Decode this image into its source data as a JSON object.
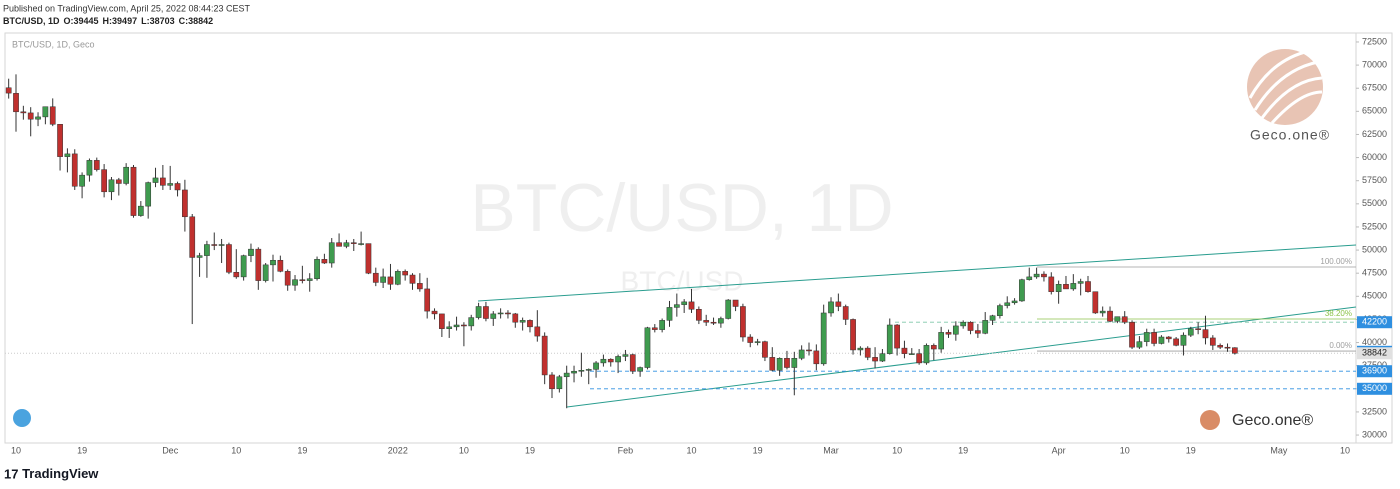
{
  "header": {
    "published": "Published on TradingView.com, April 25, 2022 08:44:23 CEST",
    "symbol": "BTC/USD, 1D",
    "ohlc": [
      {
        "label": "O:",
        "value": 39445
      },
      {
        "label": "H:",
        "value": 39497
      },
      {
        "label": "L:",
        "value": 38703
      },
      {
        "label": "C:",
        "value": 38842
      }
    ]
  },
  "chart_data": {
    "type": "candlestick",
    "legend": "BTC/USD, 1D, Geco",
    "watermark": "BTC/USD, 1D",
    "watermark_small": "BTC/USD",
    "up_color": "#3f9b4f",
    "down_color": "#c0302e",
    "categories": [
      null,
      "10",
      null,
      null,
      null,
      null,
      null,
      null,
      null,
      null,
      "19",
      null,
      null,
      null,
      null,
      null,
      null,
      null,
      null,
      null,
      null,
      null,
      "Dec",
      null,
      null,
      null,
      null,
      null,
      null,
      null,
      null,
      "10",
      null,
      null,
      null,
      null,
      null,
      null,
      null,
      null,
      "19",
      null,
      null,
      null,
      null,
      null,
      null,
      null,
      null,
      null,
      null,
      null,
      null,
      "2022",
      null,
      null,
      null,
      null,
      null,
      null,
      null,
      null,
      "10",
      null,
      null,
      null,
      null,
      null,
      null,
      null,
      null,
      "19",
      null,
      null,
      null,
      null,
      null,
      null,
      null,
      null,
      null,
      null,
      null,
      null,
      "Feb",
      null,
      null,
      null,
      null,
      null,
      null,
      null,
      null,
      "10",
      null,
      null,
      null,
      null,
      null,
      null,
      null,
      null,
      "19",
      null,
      null,
      null,
      null,
      null,
      null,
      null,
      null,
      null,
      "Mar",
      null,
      null,
      null,
      null,
      null,
      null,
      null,
      null,
      "10",
      null,
      null,
      null,
      null,
      null,
      null,
      null,
      null,
      "19",
      null,
      null,
      null,
      null,
      null,
      null,
      null,
      null,
      null,
      null,
      null,
      null,
      "Apr",
      null,
      null,
      null,
      null,
      null,
      null,
      null,
      null,
      "10",
      null,
      null,
      null,
      null,
      null,
      null,
      null,
      null,
      "19",
      null,
      null,
      null,
      null,
      null,
      null,
      null,
      null,
      null,
      null,
      null,
      "May",
      null,
      null,
      null,
      null,
      null,
      null,
      null,
      null,
      "10",
      null
    ],
    "open": [
      67550,
      66950,
      64950,
      64830,
      64150,
      64400,
      65500,
      63600,
      60100,
      60400,
      56900,
      58100,
      59700,
      58700,
      56300,
      57600,
      57200,
      58960,
      53730,
      54750,
      57300,
      57800,
      57000,
      57200,
      56500,
      53600,
      49200,
      49400,
      50600,
      50500,
      50600,
      47600,
      47100,
      49400,
      50100,
      46700,
      48400,
      48900,
      47700,
      46200,
      46800,
      46700,
      46900,
      49000,
      48600,
      50800,
      50400,
      50800,
      50700,
      50700,
      47500,
      46500,
      47100,
      46300,
      47700,
      47300,
      46400,
      45800,
      43400,
      43100,
      41500,
      41700,
      41900,
      41800,
      42700,
      43900,
      42600,
      43100,
      43200,
      43100,
      42200,
      42400,
      41700,
      40700,
      36500,
      35000,
      36300,
      36700,
      36900,
      37000,
      37100,
      37800,
      38200,
      37900,
      38500,
      38700,
      36900,
      37300,
      41600,
      41400,
      42400,
      43800,
      44100,
      44400,
      43600,
      42400,
      42200,
      42100,
      42600,
      44600,
      43900,
      40600,
      40000,
      40100,
      38400,
      37000,
      38300,
      37300,
      38300,
      39200,
      39100,
      37700,
      43200,
      44400,
      43900,
      42500,
      39200,
      39400,
      38400,
      38000,
      38800,
      41900,
      39400,
      38800,
      38800,
      37800,
      39700,
      39300,
      41100,
      40900,
      41800,
      42200,
      41300,
      41000,
      42400,
      42900,
      44000,
      44300,
      44500,
      46800,
      47100,
      47400,
      47100,
      45500,
      46300,
      45800,
      46400,
      46600,
      45500,
      43200,
      43400,
      42300,
      42800,
      42200,
      39500,
      40100,
      41100,
      39900,
      40600,
      40400,
      39700,
      40800,
      41500,
      41400,
      40500,
      39700,
      39500,
      39445,
      null,
      null,
      null,
      null,
      null,
      null,
      null,
      null,
      null,
      null,
      null,
      null,
      null,
      null,
      null,
      null
    ],
    "high": [
      68530,
      69000,
      65600,
      65450,
      64900,
      65500,
      66400,
      63600,
      61000,
      60900,
      58400,
      59900,
      60000,
      59300,
      57900,
      57800,
      59400,
      59200,
      55300,
      57400,
      58900,
      59200,
      59100,
      57400,
      57600,
      53900,
      49700,
      51000,
      51900,
      51200,
      50800,
      50100,
      49500,
      50700,
      50300,
      48600,
      49500,
      49400,
      47900,
      47300,
      48300,
      47500,
      49300,
      49600,
      51300,
      51800,
      51100,
      51200,
      52000,
      50700,
      48100,
      48000,
      48500,
      47900,
      47900,
      47500,
      47500,
      47000,
      43700,
      43100,
      42300,
      42800,
      42200,
      43000,
      44300,
      44400,
      43400,
      43700,
      43500,
      43200,
      42700,
      42500,
      43500,
      41100,
      36800,
      36500,
      37500,
      37500,
      38900,
      37200,
      38000,
      38700,
      38300,
      38700,
      39200,
      38800,
      37400,
      41700,
      42000,
      42600,
      44500,
      45300,
      44700,
      45800,
      43900,
      43000,
      42700,
      42800,
      44700,
      44600,
      44200,
      40900,
      40400,
      40200,
      39500,
      38400,
      39100,
      39000,
      39700,
      40000,
      39800,
      44100,
      44900,
      45300,
      44100,
      42600,
      39600,
      39600,
      39500,
      39300,
      42600,
      42000,
      40200,
      39400,
      39300,
      39900,
      39900,
      41700,
      41400,
      42300,
      42400,
      42300,
      42000,
      43300,
      43000,
      44200,
      45000,
      44800,
      46900,
      48100,
      48100,
      47700,
      47600,
      46700,
      47200,
      47400,
      46900,
      47200,
      45500,
      43900,
      43900,
      42800,
      43400,
      42400,
      40700,
      41500,
      41500,
      40800,
      40700,
      40600,
      41100,
      41700,
      42200,
      42900,
      40800,
      39900,
      39900,
      39497,
      null,
      null,
      null,
      null,
      null,
      null,
      null,
      null,
      null,
      null,
      null,
      null,
      null,
      null,
      null,
      null
    ],
    "low": [
      66380,
      62800,
      64100,
      62300,
      63400,
      63600,
      63400,
      58600,
      58400,
      56500,
      55600,
      57400,
      58500,
      55700,
      55400,
      55900,
      57000,
      53500,
      53600,
      53400,
      56800,
      56500,
      56500,
      55800,
      52000,
      42000,
      47100,
      47000,
      50000,
      48600,
      47400,
      46900,
      46700,
      48700,
      45700,
      46500,
      46600,
      47600,
      45600,
      45600,
      46400,
      45500,
      46700,
      48500,
      48100,
      50400,
      50200,
      49900,
      50500,
      47400,
      46100,
      45900,
      45700,
      46200,
      46700,
      45700,
      45500,
      42600,
      42500,
      40600,
      40500,
      41300,
      39600,
      41300,
      42500,
      42300,
      41800,
      42600,
      42600,
      41600,
      41300,
      41100,
      40100,
      35500,
      34000,
      34600,
      32900,
      35700,
      36300,
      35500,
      36200,
      37400,
      37400,
      36700,
      38000,
      36600,
      36300,
      37100,
      41100,
      41100,
      41700,
      42800,
      43200,
      43200,
      42000,
      41800,
      41900,
      41600,
      42500,
      43400,
      40100,
      39500,
      39700,
      38000,
      36900,
      36400,
      37100,
      34300,
      38100,
      38600,
      37000,
      37500,
      42800,
      43400,
      41900,
      38700,
      38600,
      38100,
      37200,
      37900,
      38700,
      38600,
      38300,
      38700,
      37600,
      37600,
      38100,
      38900,
      40500,
      40200,
      41500,
      40900,
      40500,
      40900,
      41900,
      42600,
      43700,
      44100,
      44400,
      46700,
      46900,
      46600,
      45200,
      44200,
      45800,
      45600,
      45100,
      45400,
      43100,
      42800,
      42200,
      42100,
      42000,
      39300,
      39300,
      39600,
      39600,
      39800,
      40000,
      39600,
      38600,
      40600,
      40900,
      39800,
      39200,
      39300,
      39000,
      38703,
      null,
      null,
      null,
      null,
      null,
      null,
      null,
      null,
      null,
      null,
      null,
      null,
      null,
      null,
      null,
      null
    ],
    "close": [
      66970,
      64950,
      64830,
      64150,
      64400,
      65500,
      63600,
      60100,
      60400,
      56900,
      58100,
      59700,
      58700,
      56300,
      57600,
      57200,
      58960,
      53730,
      54750,
      57300,
      57800,
      57000,
      57200,
      56500,
      53600,
      49200,
      49400,
      50600,
      50500,
      50600,
      47600,
      47100,
      49400,
      50100,
      46700,
      48400,
      48900,
      47700,
      46200,
      46800,
      46700,
      46900,
      49000,
      48600,
      50800,
      50400,
      50800,
      50700,
      50700,
      47500,
      46500,
      47100,
      46300,
      47700,
      47300,
      46400,
      45800,
      43400,
      43100,
      41500,
      41700,
      41900,
      41800,
      42700,
      43900,
      42600,
      43100,
      43200,
      43100,
      42200,
      42400,
      41700,
      40700,
      36500,
      35000,
      36300,
      36700,
      36900,
      37000,
      37100,
      37800,
      38200,
      37900,
      38500,
      38700,
      36900,
      37300,
      41600,
      41400,
      42400,
      43800,
      44100,
      44400,
      43600,
      42400,
      42200,
      42100,
      42600,
      44600,
      43900,
      40600,
      40000,
      40100,
      38400,
      37000,
      38300,
      37300,
      38300,
      39200,
      39100,
      37700,
      43200,
      44400,
      43900,
      42500,
      39200,
      39400,
      38400,
      38000,
      38800,
      41900,
      39400,
      38800,
      38800,
      37800,
      39700,
      39300,
      41100,
      40900,
      41800,
      42200,
      41300,
      41000,
      42400,
      42900,
      44000,
      44300,
      44500,
      46800,
      47100,
      47400,
      47100,
      45500,
      46300,
      45800,
      46400,
      46600,
      45500,
      43200,
      43400,
      42300,
      42800,
      42200,
      39500,
      40100,
      41100,
      39900,
      40600,
      40400,
      39700,
      40800,
      41500,
      41400,
      40500,
      39700,
      39500,
      39450,
      38842,
      null,
      null,
      null,
      null,
      null,
      null,
      null,
      null,
      null,
      null,
      null,
      null,
      null,
      null,
      null,
      null
    ],
    "ylim": [
      29140,
      73470
    ],
    "yticks": [
      30000,
      32500,
      35000,
      37500,
      40000,
      42500,
      45000,
      47500,
      50000,
      52500,
      55000,
      57500,
      60000,
      62500,
      65000,
      67500,
      70000,
      72500
    ],
    "price_levels": [
      42200,
      39000,
      36900,
      35000
    ],
    "level_color": "#2e8fe0",
    "last_price": 38842,
    "fib_levels": [
      {
        "value": 48170,
        "label": "100.00%"
      },
      {
        "value": 42550,
        "label": "38.20%"
      },
      {
        "value": 39080,
        "label": "0.00%"
      }
    ],
    "watermark_logo": "Geco.one®",
    "footer_logo": "Geco.one®"
  },
  "footer": {
    "brand": "TradingView"
  }
}
